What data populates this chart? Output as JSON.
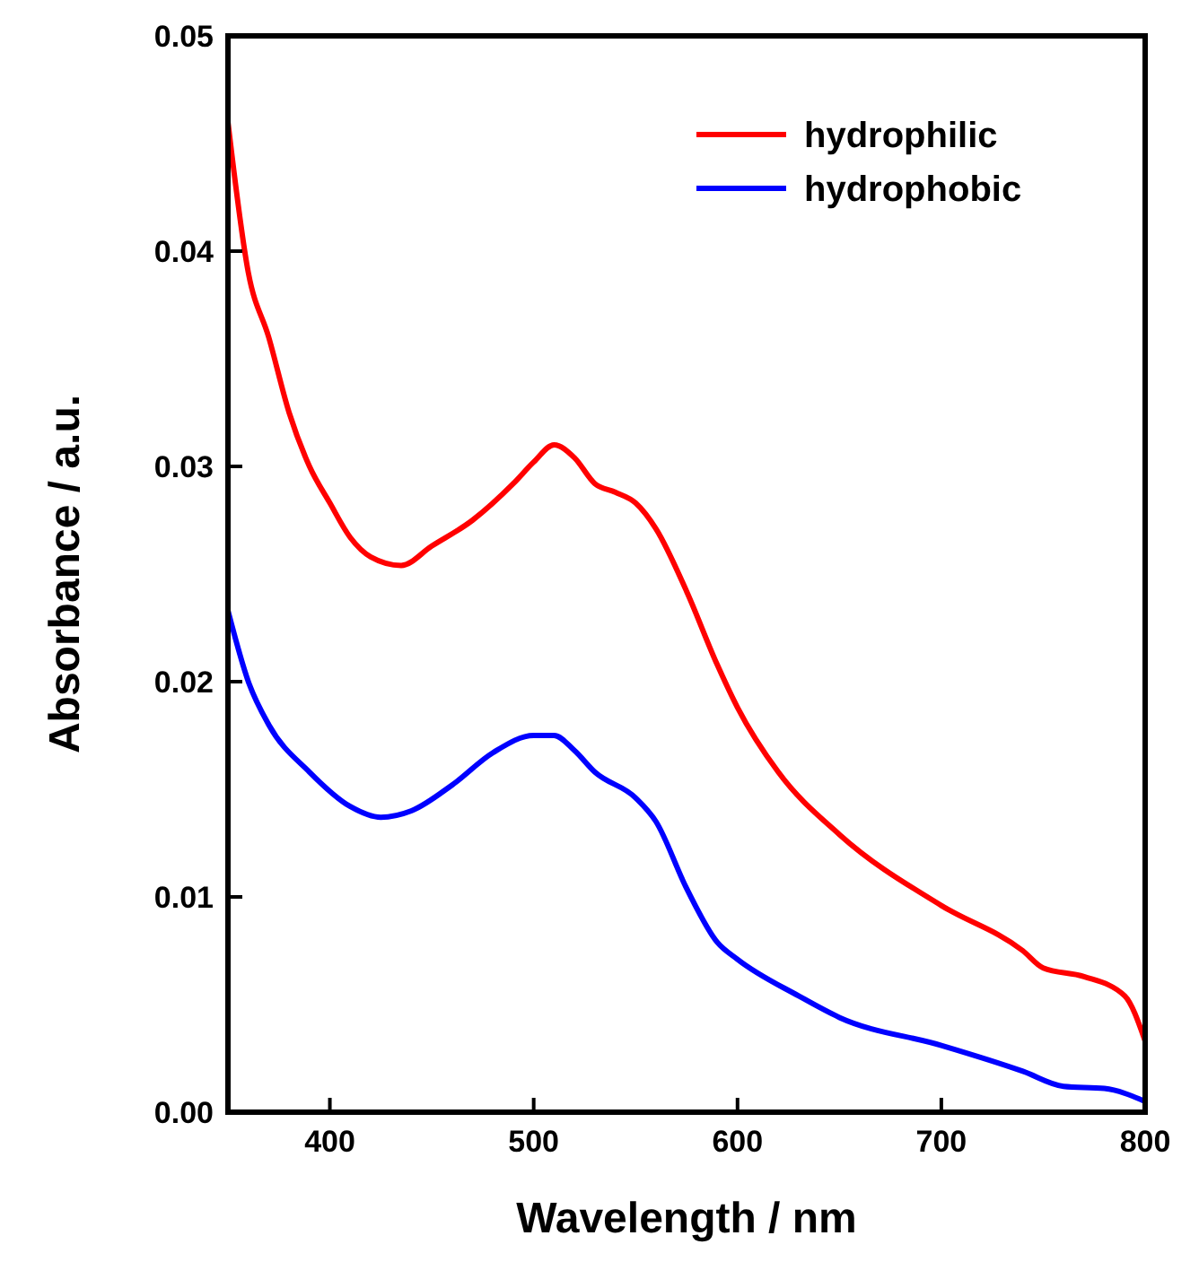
{
  "chart_data": {
    "type": "line",
    "xlabel": "Wavelength / nm",
    "ylabel": "Absorbance / a.u.",
    "xlim": [
      350,
      800
    ],
    "xticks": [
      400,
      500,
      600,
      700,
      800
    ],
    "ylim": [
      0,
      0.05
    ],
    "yticks": [
      {
        "value": 0,
        "label": "0.00"
      },
      {
        "value": 0.01,
        "label": "0.01"
      },
      {
        "value": 0.02,
        "label": "0.02"
      },
      {
        "value": 0.03,
        "label": "0.03"
      },
      {
        "value": 0.04,
        "label": "0.04"
      },
      {
        "value": 0.05,
        "label": "0.05"
      }
    ],
    "legend": "top right",
    "grid": false,
    "marker": "none",
    "line_style": "solid",
    "series": [
      {
        "name": "hydrophilic",
        "color": "#ff0000",
        "x": [
          350,
          360,
          370,
          380,
          390,
          400,
          410,
          420,
          435,
          450,
          470,
          490,
          500,
          510,
          520,
          530,
          540,
          550,
          560,
          575,
          590,
          600,
          620,
          650,
          700,
          740,
          750,
          770,
          790,
          800
        ],
        "values": [
          0.046,
          0.039,
          0.036,
          0.0325,
          0.03,
          0.0283,
          0.0267,
          0.0258,
          0.0254,
          0.0263,
          0.0275,
          0.0292,
          0.0302,
          0.031,
          0.0304,
          0.0292,
          0.0288,
          0.0283,
          0.0271,
          0.0242,
          0.0208,
          0.0188,
          0.0158,
          0.0129,
          0.0096,
          0.0075,
          0.0067,
          0.0063,
          0.0054,
          0.0033
        ]
      },
      {
        "name": "hydrophobic",
        "color": "#0000ff",
        "x": [
          350,
          360,
          370,
          390,
          410,
          425,
          440,
          460,
          480,
          500,
          510,
          520,
          530,
          550,
          560,
          575,
          590,
          600,
          630,
          650,
          700,
          740,
          760,
          780,
          800
        ],
        "values": [
          0.0233,
          0.02,
          0.018,
          0.0158,
          0.0142,
          0.0137,
          0.014,
          0.0152,
          0.0167,
          0.0175,
          0.0175,
          0.0168,
          0.0158,
          0.0146,
          0.0135,
          0.0104,
          0.0079,
          0.0071,
          0.0054,
          0.0044,
          0.0031,
          0.0019,
          0.0012,
          0.0011,
          0.0005
        ]
      }
    ]
  }
}
